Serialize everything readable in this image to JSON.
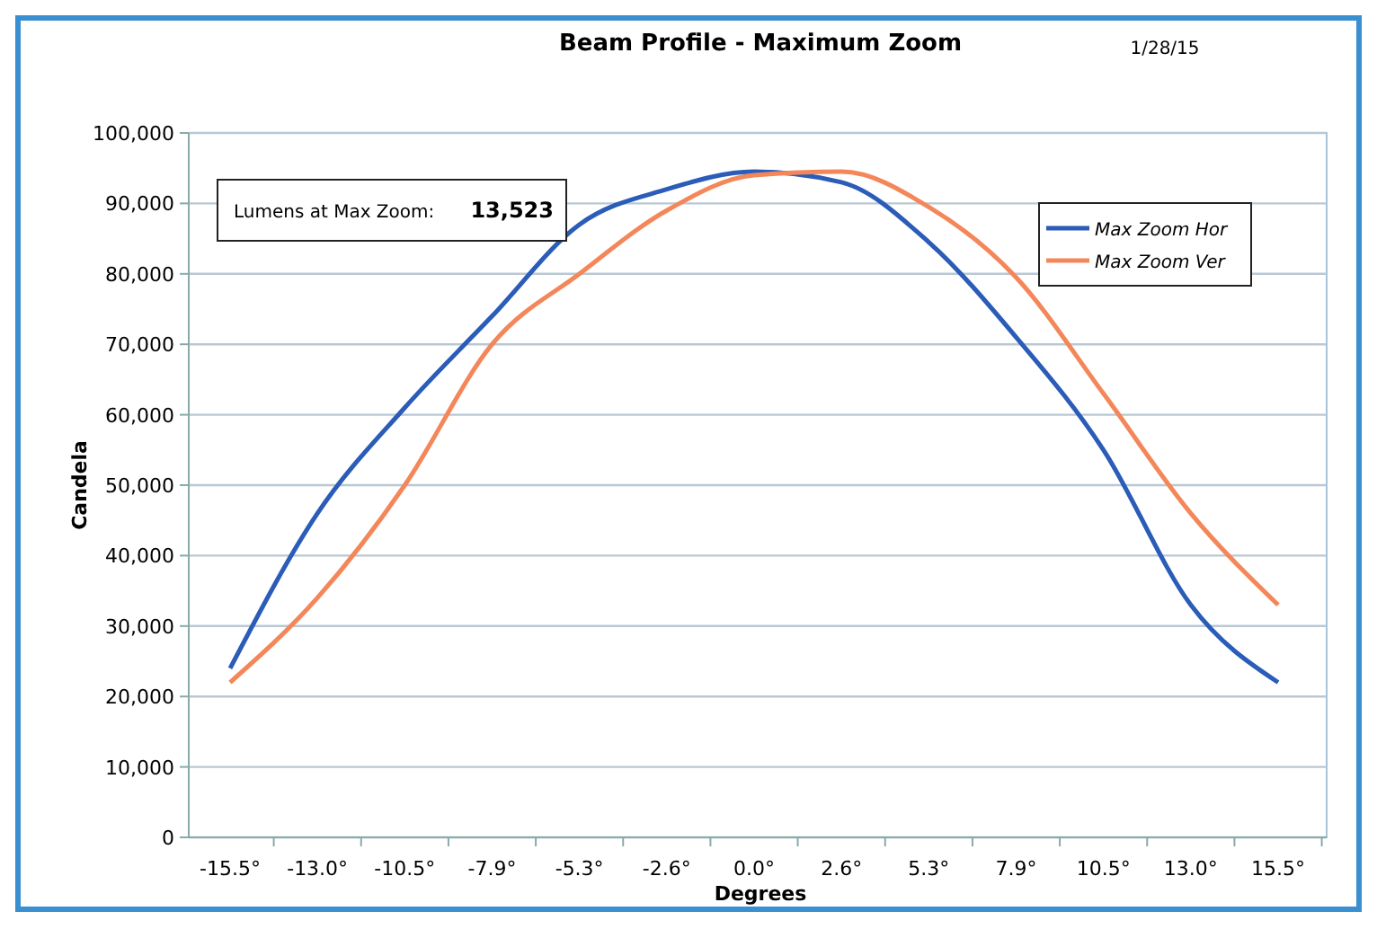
{
  "chart_data": {
    "type": "line",
    "title": "Beam Profile - Maximum Zoom",
    "xlabel": "Degrees",
    "ylabel": "Candela",
    "annotations": [
      "1/28/15",
      "Lumens at Max Zoom:",
      "13,523"
    ],
    "categories": [
      "-15.5°",
      "-13.0°",
      "-10.5°",
      "-7.9°",
      "-5.3°",
      "-2.6°",
      "0.0°",
      "2.6°",
      "5.3°",
      "7.9°",
      "10.5°",
      "13.0°",
      "15.5°"
    ],
    "series": [
      {
        "name": "Max Zoom Hor",
        "color": "#2a5cb8",
        "values": [
          24000,
          46000,
          61000,
          74000,
          87000,
          92000,
          94500,
          93000,
          84500,
          71000,
          55000,
          33000,
          22000
        ]
      },
      {
        "name": "Max Zoom Ver",
        "color": "#f4875a",
        "values": [
          22000,
          34000,
          50000,
          70000,
          80000,
          89000,
          94000,
          94500,
          89500,
          79500,
          63000,
          46000,
          33000
        ]
      }
    ],
    "ylim": [
      0,
      100000
    ],
    "yticks": [
      {
        "value": 0,
        "label": "0"
      },
      {
        "value": 10000,
        "label": "10,000"
      },
      {
        "value": 20000,
        "label": "20,000"
      },
      {
        "value": 30000,
        "label": "30,000"
      },
      {
        "value": 40000,
        "label": "40,000"
      },
      {
        "value": 50000,
        "label": "50,000"
      },
      {
        "value": 60000,
        "label": "60,000"
      },
      {
        "value": 70000,
        "label": "70,000"
      },
      {
        "value": 80000,
        "label": "80,000"
      },
      {
        "value": 90000,
        "label": "90,000"
      },
      {
        "value": 100000,
        "label": "100,000"
      }
    ],
    "grid": "y",
    "legend": "top right",
    "marker": "none",
    "line_style": "solid"
  }
}
